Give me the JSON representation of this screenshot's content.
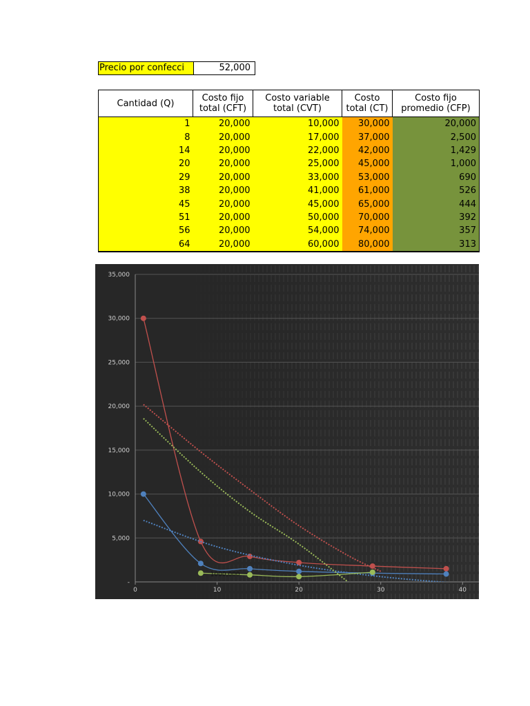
{
  "price": {
    "label": "Precio por confecci",
    "value": "52,000"
  },
  "table": {
    "headers": [
      "Cantidad (Q)",
      "Costo fijo total (CFT)",
      "Costo variable total (CVT)",
      "Costo total (CT)",
      "Costo fijo promedio (CFP)"
    ],
    "rows": [
      [
        "1",
        "20,000",
        "10,000",
        "30,000",
        "20,000"
      ],
      [
        "8",
        "20,000",
        "17,000",
        "37,000",
        "2,500"
      ],
      [
        "14",
        "20,000",
        "22,000",
        "42,000",
        "1,429"
      ],
      [
        "20",
        "20,000",
        "25,000",
        "45,000",
        "1,000"
      ],
      [
        "29",
        "20,000",
        "33,000",
        "53,000",
        "690"
      ],
      [
        "38",
        "20,000",
        "41,000",
        "61,000",
        "526"
      ],
      [
        "45",
        "20,000",
        "45,000",
        "65,000",
        "444"
      ],
      [
        "51",
        "20,000",
        "50,000",
        "70,000",
        "392"
      ],
      [
        "56",
        "20,000",
        "54,000",
        "74,000",
        "357"
      ],
      [
        "64",
        "20,000",
        "60,000",
        "80,000",
        "313"
      ]
    ]
  },
  "chart_data": {
    "type": "scatter",
    "title": "",
    "xlabel": "",
    "ylabel": "",
    "xlim": [
      0,
      42
    ],
    "ylim": [
      0,
      35000
    ],
    "x_ticks": [
      "0",
      "10",
      "20",
      "30",
      "40"
    ],
    "y_ticks": [
      "-",
      "5,000",
      "10,000",
      "15,000",
      "20,000",
      "25,000",
      "30,000",
      "35,000"
    ],
    "grid": true,
    "annotation": "1000,000",
    "series": [
      {
        "color": "#c0504d",
        "x": [
          1,
          8,
          14,
          20,
          29,
          38
        ],
        "y": [
          30000,
          4600,
          2900,
          2200,
          1800,
          1500
        ],
        "trend": [
          [
            1,
            20200
          ],
          [
            8,
            14800
          ],
          [
            14,
            10500
          ],
          [
            20,
            6400
          ],
          [
            26,
            3000
          ],
          [
            30,
            1200
          ]
        ]
      },
      {
        "color": "#4f81bd",
        "x": [
          1,
          8,
          14,
          20,
          29,
          38
        ],
        "y": [
          10000,
          2100,
          1500,
          1200,
          1000,
          900
        ],
        "trend": [
          [
            1,
            7000
          ],
          [
            10,
            4000
          ],
          [
            20,
            1900
          ],
          [
            30,
            600
          ],
          [
            40,
            -200
          ],
          [
            42,
            -300
          ]
        ]
      },
      {
        "color": "#9bbb59",
        "x": [
          8,
          14,
          20,
          29
        ],
        "y": [
          1000,
          800,
          600,
          1100
        ],
        "trend": [
          [
            1,
            18600
          ],
          [
            8,
            12500
          ],
          [
            14,
            8000
          ],
          [
            20,
            4300
          ],
          [
            26,
            0
          ]
        ]
      }
    ]
  }
}
